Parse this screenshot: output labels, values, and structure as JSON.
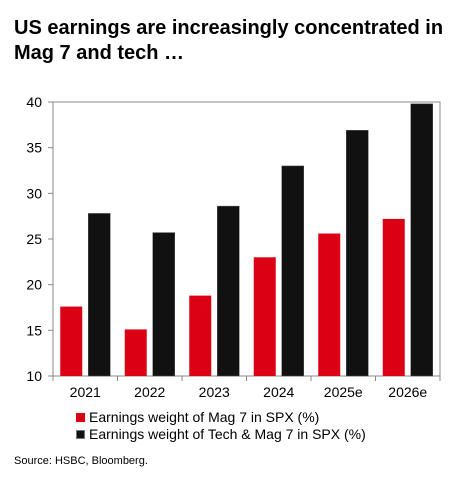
{
  "title": "US earnings are increasingly concentrated in Mag 7 and tech …",
  "source": "Source: HSBC, Bloomberg.",
  "colors": {
    "mag7": "#dc0014",
    "tech_mag7": "#111111",
    "axis": "#888888"
  },
  "chart_data": {
    "type": "bar",
    "categories": [
      "2021",
      "2022",
      "2023",
      "2024",
      "2025e",
      "2026e"
    ],
    "series": [
      {
        "name": "Earnings weight of Mag 7 in SPX (%)",
        "values": [
          17.6,
          15.1,
          18.8,
          23.0,
          25.6,
          27.2
        ]
      },
      {
        "name": "Earnings weight of Tech & Mag 7 in SPX (%)",
        "values": [
          27.8,
          25.7,
          28.6,
          33.0,
          36.9,
          39.8
        ]
      }
    ],
    "ylim": [
      10,
      40
    ],
    "yticks": [
      "10",
      "15",
      "20",
      "25",
      "30",
      "35",
      "40"
    ],
    "xlabel": "",
    "ylabel": "",
    "grid": false,
    "legend_position": "bottom-left"
  }
}
